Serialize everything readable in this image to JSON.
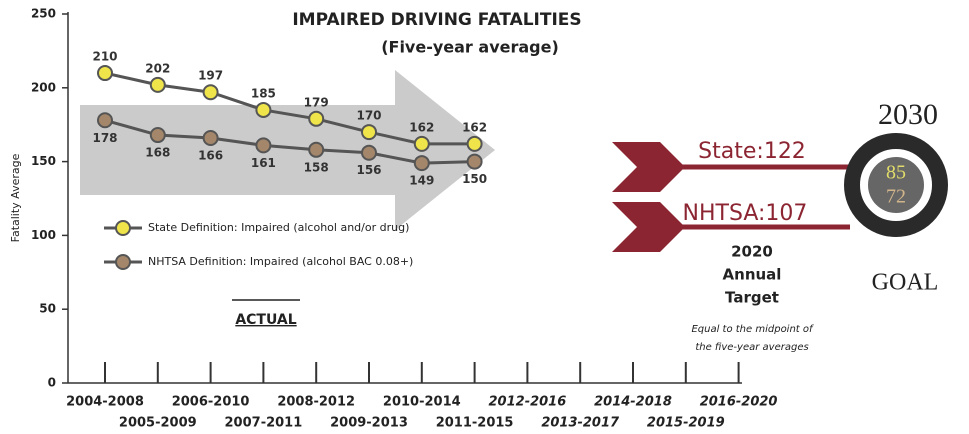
{
  "chart_data": {
    "type": "line",
    "title": "IMPAIRED DRIVING FATALITIES",
    "subtitle": "(Five-year average)",
    "y_label": "Fatality Average",
    "categories": [
      "2004-2008",
      "2005-2009",
      "2006-2010",
      "2007-2011",
      "2008-2012",
      "2009-2013",
      "2010-2014",
      "2011-2015",
      "2012-2016",
      "2013-2017",
      "2014-2018",
      "2015-2019",
      "2016-2020"
    ],
    "series": [
      {
        "name": "State Definition: Impaired (alcohol and/or drug)",
        "color": "#efe54a",
        "values": [
          210,
          202,
          197,
          185,
          179,
          170,
          162,
          162,
          null,
          null,
          null,
          null,
          null
        ]
      },
      {
        "name": "NHTSA Definition: Impaired (alcohol BAC 0.08+)",
        "color": "#a4876a",
        "values": [
          178,
          168,
          166,
          161,
          158,
          156,
          149,
          150,
          null,
          null,
          null,
          null,
          null
        ]
      }
    ],
    "ylim": [
      0,
      250
    ],
    "yticks": [
      0,
      50,
      100,
      150,
      200,
      250
    ],
    "grid": false,
    "annotations": {
      "actual": "ACTUAL",
      "state_target": "State:122",
      "nhtsa_target": "NHTSA:107",
      "target_title": [
        "2020",
        "Annual",
        "Target"
      ],
      "target_note": [
        "Equal to the midpoint of",
        "the five-year averages"
      ],
      "goal_year": "2030",
      "goal_state": "85",
      "goal_nhtsa": "72",
      "goal_label": "GOAL"
    }
  }
}
